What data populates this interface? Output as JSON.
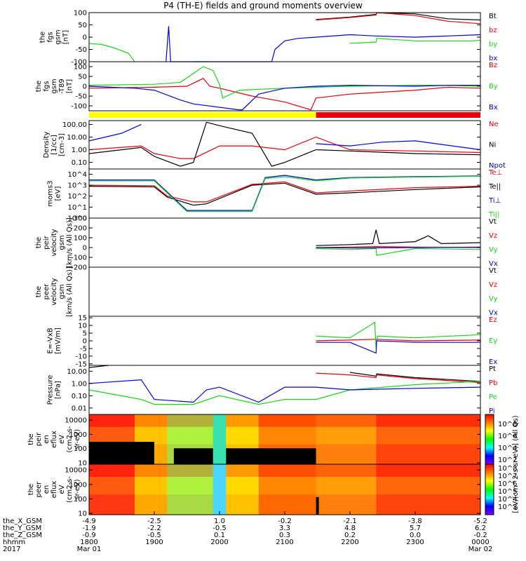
{
  "title": "P4 (TH-E) fields and ground moments overview",
  "colors": {
    "black": "#000000",
    "red": "#e8000b",
    "green": "#1ad61a",
    "blue": "#0000e6",
    "yellow": "#ffff00"
  },
  "status_bar": {
    "segments": [
      {
        "from": 1800,
        "to": 2148,
        "color": "yellow"
      },
      {
        "from": 2148,
        "to": 2400,
        "color": "red"
      }
    ]
  },
  "chart_data": [
    {
      "type": "line",
      "id": "fgs",
      "ylabel": [
        "the",
        "fgs",
        "gsm",
        "[nT]"
      ],
      "ylim": [
        -100,
        100
      ],
      "yticks": [
        -100,
        -50,
        0,
        50,
        100
      ],
      "legend": [
        {
          "name": "Bt",
          "color": "black"
        },
        {
          "name": "bz",
          "color": "red"
        },
        {
          "name": "by",
          "color": "green"
        },
        {
          "name": "bx",
          "color": "blue"
        }
      ],
      "series": [
        {
          "name": "Bt",
          "color": "black",
          "x": [
            1800,
            2148,
            2148,
            2200,
            2230,
            2240,
            2241,
            2300,
            2350,
            2400
          ],
          "y": [
            null,
            null,
            72,
            82,
            90,
            93,
            112,
            95,
            75,
            70
          ]
        },
        {
          "name": "bz",
          "color": "red",
          "x": [
            2148,
            2200,
            2240,
            2241,
            2300,
            2350,
            2400
          ],
          "y": [
            70,
            80,
            90,
            107,
            88,
            65,
            55
          ]
        },
        {
          "name": "by",
          "color": "green",
          "x": [
            1800,
            1820,
            1840,
            1860,
            1870,
            1950,
            1960,
            1980,
            2148,
            2200,
            2240,
            2241,
            2300,
            2350,
            2390,
            2400
          ],
          "y": [
            -25,
            -30,
            -45,
            -65,
            -100,
            null,
            -100,
            -100,
            null,
            -25,
            -20,
            -5,
            -15,
            -15,
            -15,
            -12
          ]
        },
        {
          "name": "bx",
          "color": "blue",
          "x": [
            1918,
            1922,
            1925,
            2080,
            2085,
            2100,
            2120,
            2148,
            2200,
            2240,
            2300,
            2350,
            2400
          ],
          "y": [
            -100,
            45,
            -100,
            -100,
            -50,
            -15,
            -5,
            0,
            10,
            5,
            0,
            5,
            10
          ]
        }
      ]
    },
    {
      "type": "line",
      "id": "fgs-ted",
      "ylabel": [
        "the",
        "fgs",
        "gsm",
        "-T89",
        "[nT]"
      ],
      "ylim": [
        -125,
        125
      ],
      "yticks": [
        -100,
        -50,
        0,
        50,
        100
      ],
      "legend": [
        {
          "name": "Bz",
          "color": "red"
        },
        {
          "name": "By",
          "color": "green"
        },
        {
          "name": "Bx",
          "color": "blue"
        }
      ],
      "series": [
        {
          "name": "Bz",
          "color": "red",
          "x": [
            1800,
            1900,
            1950,
            1975,
            1985,
            2000,
            2050,
            2100,
            2140,
            2148,
            2200,
            2250,
            2300,
            2350,
            2400
          ],
          "y": [
            -10,
            -5,
            0,
            40,
            0,
            -10,
            -50,
            -80,
            -120,
            -60,
            -40,
            -30,
            -20,
            -5,
            -10
          ]
        },
        {
          "name": "By",
          "color": "green",
          "x": [
            1800,
            1900,
            1940,
            1975,
            1990,
            2000,
            2005,
            2030,
            2100,
            2148,
            2200,
            2300,
            2350,
            2400
          ],
          "y": [
            5,
            10,
            20,
            100,
            80,
            10,
            -60,
            -20,
            -10,
            -5,
            0,
            5,
            5,
            0
          ]
        },
        {
          "name": "Bx",
          "color": "blue",
          "x": [
            1800,
            1870,
            1900,
            1940,
            1960,
            2030,
            2035,
            2060,
            2100,
            2148,
            2200,
            2300,
            2350,
            2400
          ],
          "y": [
            0,
            -10,
            -20,
            -70,
            -90,
            -120,
            -120,
            -40,
            -10,
            0,
            5,
            0,
            5,
            5
          ]
        }
      ]
    },
    {
      "type": "line",
      "id": "density",
      "yscale": "log",
      "ylabel": [
        "Density",
        "[1/cc]",
        "[cm-3]"
      ],
      "ylim": [
        0.03,
        200
      ],
      "yticks": [
        0.1,
        1,
        10,
        100
      ],
      "yticklabels": [
        "0.10",
        "1.00",
        "10.00",
        "100.00"
      ],
      "legend": [
        {
          "name": "Ne",
          "color": "red"
        },
        {
          "name": "Ni",
          "color": "black"
        },
        {
          "name": "Npot",
          "color": "blue"
        }
      ],
      "series": [
        {
          "name": "Ne",
          "color": "red",
          "x": [
            1800,
            1880,
            1900,
            1940,
            1960,
            2000,
            2050,
            2100,
            2148,
            2200,
            2300,
            2400
          ],
          "y": [
            1,
            2,
            0.5,
            0.2,
            0.2,
            2,
            2,
            1,
            10,
            1,
            0.8,
            0.6
          ]
        },
        {
          "name": "Ni",
          "color": "black",
          "x": [
            1800,
            1880,
            1900,
            1940,
            1960,
            1980,
            2000,
            2050,
            2080,
            2100,
            2148,
            2200,
            2300,
            2400
          ],
          "y": [
            0.5,
            1.5,
            0.3,
            0.05,
            0.1,
            150,
            80,
            20,
            0.05,
            0.1,
            1,
            0.8,
            0.5,
            0.4
          ]
        },
        {
          "name": "Npot",
          "color": "blue",
          "x": [
            1800,
            1850,
            1880,
            1900,
            1960,
            2148,
            2200,
            2250,
            2300,
            2400
          ],
          "y": [
            5,
            20,
            100,
            null,
            null,
            3,
            2,
            4,
            5,
            1
          ]
        }
      ]
    },
    {
      "type": "line",
      "id": "temp",
      "yscale": "log",
      "ylabel": [
        "moms3",
        "[eV]"
      ],
      "ylim": [
        1,
        30000
      ],
      "yticks": [
        1,
        10,
        100,
        1000,
        10000
      ],
      "yticklabels": [
        "10^0",
        "10^1",
        "10^2",
        "10^3",
        "10^4"
      ],
      "legend": [
        {
          "name": "Te⊥",
          "color": "red"
        },
        {
          "name": "Te||",
          "color": "black"
        },
        {
          "name": "Ti⊥",
          "color": "blue"
        },
        {
          "name": "Ti||",
          "color": "green"
        }
      ],
      "series": [
        {
          "name": "Te⊥",
          "color": "red",
          "x": [
            1800,
            1900,
            1920,
            1960,
            1980,
            2050,
            2100,
            2148,
            2200,
            2300,
            2400
          ],
          "y": [
            1000,
            900,
            100,
            30,
            30,
            1200,
            2000,
            200,
            300,
            600,
            800
          ]
        },
        {
          "name": "Te||",
          "color": "black",
          "x": [
            1800,
            1900,
            1920,
            1960,
            1980,
            2050,
            2100,
            2148,
            2200,
            2300,
            2400
          ],
          "y": [
            800,
            700,
            80,
            15,
            20,
            1000,
            1500,
            150,
            200,
            400,
            700
          ]
        },
        {
          "name": "Ti⊥",
          "color": "blue",
          "x": [
            1800,
            1900,
            1950,
            1960,
            2050,
            2070,
            2100,
            2148,
            2200,
            2300,
            2400
          ],
          "y": [
            3000,
            3000,
            5,
            5,
            5,
            5000,
            8000,
            3000,
            5000,
            6000,
            7000
          ]
        },
        {
          "name": "Ti||",
          "color": "green",
          "x": [
            1800,
            1900,
            1950,
            1960,
            2050,
            2070,
            2100,
            2148,
            2200,
            2300,
            2400
          ],
          "y": [
            2500,
            2500,
            4,
            4,
            4,
            4000,
            6000,
            2500,
            4500,
            5500,
            6500
          ]
        }
      ]
    },
    {
      "type": "line",
      "id": "peir-vel",
      "ylabel": [
        "the",
        "peir",
        "velocity",
        "gsm",
        "[km/s (All Qs)]"
      ],
      "ylim": [
        -200,
        300
      ],
      "yticks": [
        -200,
        -100,
        0,
        100,
        200,
        300
      ],
      "legend": [
        {
          "name": "Vt",
          "color": "black"
        },
        {
          "name": "Vz",
          "color": "red"
        },
        {
          "name": "Vy",
          "color": "green"
        },
        {
          "name": "Vx",
          "color": "blue"
        }
      ],
      "series": [
        {
          "name": "Vt",
          "color": "black",
          "x": [
            2148,
            2200,
            2235,
            2240,
            2245,
            2300,
            2320,
            2340,
            2400
          ],
          "y": [
            20,
            30,
            40,
            180,
            40,
            60,
            120,
            40,
            50
          ]
        },
        {
          "name": "Vz",
          "color": "red",
          "x": [
            2148,
            2200,
            2240,
            2300,
            2400
          ],
          "y": [
            0,
            5,
            10,
            5,
            0
          ]
        },
        {
          "name": "Vy",
          "color": "green",
          "x": [
            2148,
            2200,
            2240,
            2241,
            2300,
            2400
          ],
          "y": [
            -10,
            -20,
            -10,
            -80,
            -10,
            -20
          ]
        },
        {
          "name": "Vx",
          "color": "blue",
          "x": [
            2148,
            2200,
            2300,
            2400
          ],
          "y": [
            0,
            -5,
            0,
            5
          ]
        }
      ]
    },
    {
      "type": "line",
      "id": "peer-vel",
      "ylabel": [
        "the",
        "peer",
        "velocity",
        "gsm",
        "[km/s (All Qs)]"
      ],
      "ylim": [
        -200,
        300
      ],
      "yticks": [],
      "legend": [
        {
          "name": "Vt",
          "color": "black"
        },
        {
          "name": "Vz",
          "color": "red"
        },
        {
          "name": "Vy",
          "color": "green"
        },
        {
          "name": "Vx",
          "color": "blue"
        }
      ],
      "series": []
    },
    {
      "type": "line",
      "id": "efield",
      "ylabel": [
        "E=-VxB",
        "[mV/m]"
      ],
      "ylim": [
        -16,
        16
      ],
      "yticks": [
        -15,
        -10,
        -5,
        0,
        5,
        10,
        15
      ],
      "legend": [
        {
          "name": "Ez",
          "color": "red"
        },
        {
          "name": "Ey",
          "color": "green"
        },
        {
          "name": "Ex",
          "color": "blue"
        }
      ],
      "series": [
        {
          "name": "Ez",
          "color": "red",
          "x": [
            2148,
            2200,
            2240,
            2300,
            2400
          ],
          "y": [
            0,
            0.5,
            1,
            0,
            0.5
          ]
        },
        {
          "name": "Ey",
          "color": "green",
          "x": [
            2148,
            2200,
            2238,
            2240,
            2242,
            2300,
            2400
          ],
          "y": [
            3,
            2,
            12,
            -5,
            3,
            2,
            4
          ]
        },
        {
          "name": "Ex",
          "color": "blue",
          "x": [
            2148,
            2200,
            2240,
            2241,
            2300,
            2400
          ],
          "y": [
            -1,
            -1,
            -8,
            0,
            -1,
            -1
          ]
        }
      ]
    },
    {
      "type": "line",
      "id": "pressure",
      "yscale": "log",
      "ylabel": [
        "Pressure",
        "[nPa]"
      ],
      "ylim": [
        0.003,
        30
      ],
      "yticks": [
        0.01,
        0.1,
        1,
        10
      ],
      "yticklabels": [
        "0.01",
        "0.10",
        "1.00",
        "10.00"
      ],
      "legend": [
        {
          "name": "Pt",
          "color": "black"
        },
        {
          "name": "Pb",
          "color": "red"
        },
        {
          "name": "Pe",
          "color": "green"
        },
        {
          "name": "Pi",
          "color": "blue"
        }
      ],
      "series": [
        {
          "name": "Pt",
          "color": "black",
          "x": [
            1800,
            1830,
            2148,
            2200,
            2240,
            2241,
            2300,
            2400
          ],
          "y": [
            20,
            30,
            null,
            8,
            4,
            6,
            3,
            1.5
          ]
        },
        {
          "name": "Pb",
          "color": "red",
          "x": [
            2148,
            2200,
            2240,
            2241,
            2300,
            2400
          ],
          "y": [
            7,
            5,
            3,
            5,
            2.5,
            1.2
          ]
        },
        {
          "name": "Pe",
          "color": "green",
          "x": [
            1800,
            1880,
            1900,
            1960,
            2000,
            2060,
            2100,
            2148,
            2200,
            2300,
            2400
          ],
          "y": [
            0.3,
            0.05,
            0.02,
            0.02,
            0.1,
            0.02,
            0.05,
            0.05,
            0.3,
            0.8,
            1.5
          ]
        },
        {
          "name": "Pi",
          "color": "blue",
          "x": [
            1800,
            1880,
            1900,
            1960,
            1980,
            2000,
            2060,
            2100,
            2148,
            2200,
            2300,
            2400
          ],
          "y": [
            1,
            2,
            0.05,
            0.03,
            0.3,
            0.5,
            0.03,
            0.5,
            0.5,
            0.3,
            0.4,
            0.5
          ]
        }
      ]
    },
    {
      "type": "heatmap",
      "id": "peir-spec",
      "yscale": "log",
      "ylabel": [
        "the",
        "peir",
        "en",
        "eflux",
        "eV",
        "(cm2-s-",
        "sr-eV)"
      ],
      "ylim": [
        8,
        25000
      ],
      "yticks": [
        10,
        100,
        1000,
        10000
      ],
      "yticklabels": [
        "10",
        "100",
        "1000",
        "10000"
      ]
    },
    {
      "type": "heatmap",
      "id": "peer-spec",
      "yscale": "log",
      "ylabel": [
        "the",
        "peer",
        "en",
        "eflux",
        "eV",
        "(cm2-s-",
        "sr-eV)"
      ],
      "ylim": [
        8,
        25000
      ],
      "yticks": [
        10,
        100,
        1000,
        10000
      ],
      "yticklabels": [
        "10",
        "100",
        "1000",
        "10000"
      ]
    }
  ],
  "colorbar": {
    "label": "[eV/(cm^2-s-sr-eV)] (All Qs)",
    "ticks": [
      "10^8",
      "10^6",
      "10^4",
      "10^2",
      "10^8",
      "10^7",
      "10^6",
      "10^5",
      "10^4",
      "10^3"
    ]
  },
  "x_axis": {
    "range": [
      1800,
      2400
    ],
    "ticks": [
      1800,
      1900,
      2000,
      2100,
      2200,
      2300,
      2400
    ],
    "rows": [
      {
        "label": "the_X_GSM",
        "values": [
          "-4.9",
          "-2.5",
          "1.0",
          "-0.2",
          "-2.1",
          "-3.8",
          "-5.2"
        ]
      },
      {
        "label": "the_Y_GSM",
        "values": [
          "-1.9",
          "-2.2",
          "-0.5",
          "3.3",
          "4.8",
          "5.7",
          "6.2"
        ]
      },
      {
        "label": "the_Z_GSM",
        "values": [
          "-0.9",
          "-0.5",
          "0.1",
          "0.3",
          "0.2",
          "0.0",
          "-0.2"
        ]
      },
      {
        "label": "hhmm",
        "values": [
          "1800",
          "1900",
          "2000",
          "2100",
          "2200",
          "2300",
          "0000"
        ]
      },
      {
        "label": "2017",
        "values": [
          "Mar 01",
          "",
          "",
          "",
          "",
          "",
          "Mar 02"
        ]
      }
    ]
  }
}
